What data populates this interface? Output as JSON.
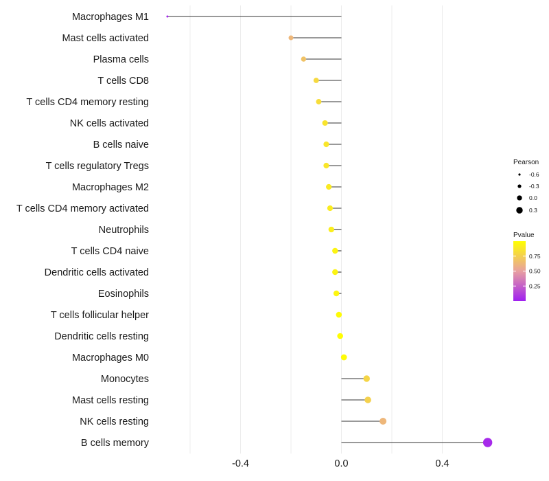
{
  "chart_data": {
    "type": "lollipop",
    "title": "",
    "xlabel": "",
    "ylabel": "",
    "xlim": [
      -0.69,
      0.61
    ],
    "x_ticks": [
      -0.4,
      0.0,
      0.4
    ],
    "x_tick_labels": [
      "-0.4",
      "0.0",
      "0.4"
    ],
    "grid": true,
    "categories": [
      "Macrophages M1",
      "Mast cells activated",
      "Plasma cells",
      "T cells CD8",
      "T cells CD4 memory resting",
      "NK cells activated",
      "B cells naive",
      "T cells regulatory  Tregs ",
      "Macrophages M2",
      "T cells CD4 memory activated",
      "Neutrophils",
      "T cells CD4 naive",
      "Dendritic cells activated",
      "Eosinophils",
      "T cells follicular helper",
      "Dendritic cells resting",
      "Macrophages M0",
      "Monocytes",
      "Mast cells resting",
      "NK cells resting",
      "B cells memory"
    ],
    "pearson": [
      -0.69,
      -0.2,
      -0.15,
      -0.1,
      -0.09,
      -0.065,
      -0.06,
      -0.06,
      -0.05,
      -0.045,
      -0.04,
      -0.025,
      -0.025,
      -0.02,
      -0.01,
      -0.005,
      0.01,
      0.1,
      0.105,
      0.165,
      0.58
    ],
    "pvalue": [
      0.02,
      0.62,
      0.68,
      0.8,
      0.82,
      0.86,
      0.87,
      0.87,
      0.89,
      0.9,
      0.91,
      0.94,
      0.94,
      0.95,
      0.98,
      0.99,
      0.98,
      0.78,
      0.76,
      0.62,
      0.04
    ],
    "size_legend": {
      "title": "Pearson",
      "values": [
        -0.6,
        -0.3,
        0.0,
        0.3
      ],
      "labels": [
        "-0.6",
        "-0.3",
        "0.0",
        "0.3"
      ]
    },
    "color_legend": {
      "title": "Pvalue",
      "range": [
        0.0,
        1.0
      ],
      "ticks": [
        0.25,
        0.5,
        0.75
      ],
      "labels": [
        "0.25",
        "0.50",
        "0.75"
      ],
      "low_color": "#a020f0",
      "mid_color": "#e8a0a0",
      "high_color": "#ffff00"
    }
  }
}
